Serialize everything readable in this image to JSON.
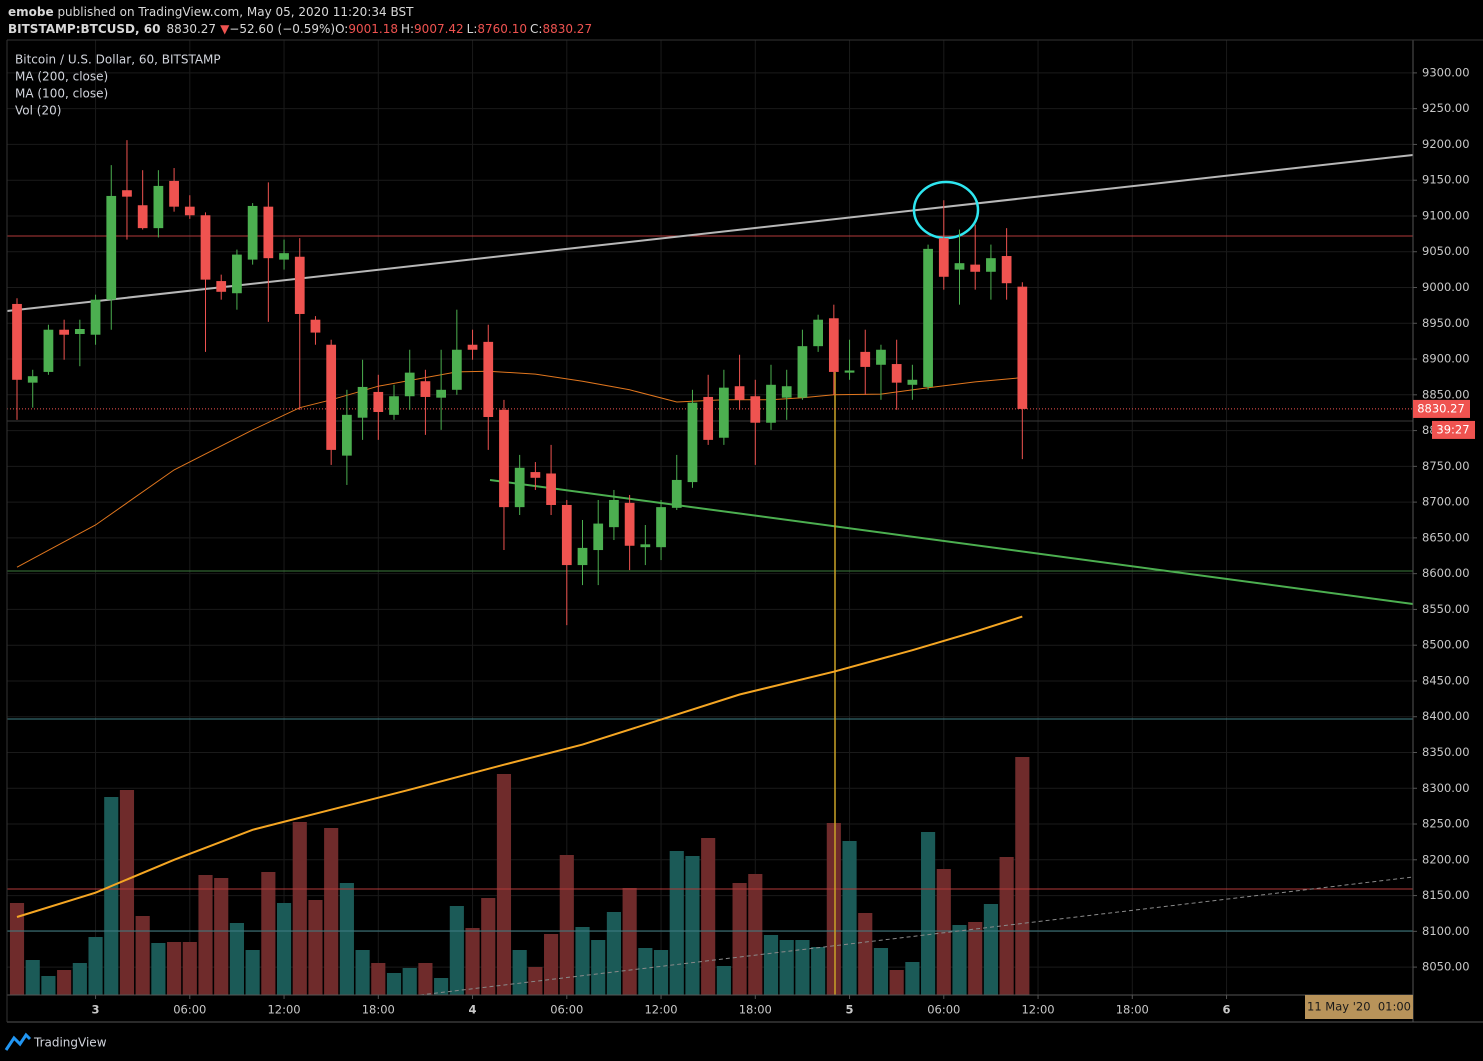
{
  "header": {
    "author": "emobe",
    "published": " published on TradingView.com, May 05, 2020 11:20:34 BST",
    "symbol": "BITSTAMP:BTCUSD, 60",
    "last": "8830.27",
    "arrow": "▼",
    "change": "−52.60 (−0.59%)",
    "open_label": "O:",
    "open": "9001.18",
    "high_label": "H:",
    "high": "9007.42",
    "low_label": "L:",
    "low": "8760.10",
    "close_label": "C:",
    "close": "8830.27"
  },
  "footer": {
    "brand": "TradingView"
  },
  "chart_data": {
    "type": "candlestick",
    "title": "Bitcoin / U.S. Dollar, 60, BITSTAMP",
    "up_color": "#4caf50",
    "down_color": "#ef5350",
    "grid": true,
    "candles": {
      "open": [
        8977,
        8867,
        8882,
        8941,
        8935,
        8934,
        8983,
        9136,
        9115,
        9083,
        9149,
        9113,
        9101,
        9009,
        8992,
        9039,
        9113,
        9039,
        9043,
        8955,
        8920,
        8765,
        8818,
        8854,
        8822,
        8848,
        8869,
        8846,
        8857,
        8920,
        8924,
        8829,
        8693,
        8742,
        8740,
        8696,
        8612,
        8633,
        8665,
        8699,
        8637,
        8637,
        8692,
        8728,
        8847,
        8790,
        8862,
        8848,
        8811,
        8846,
        8846,
        8918,
        8957,
        8881,
        8910,
        8892,
        8893,
        8864,
        8861,
        9069,
        9025,
        9032,
        9022,
        9044,
        9001.18
      ],
      "high": [
        8985,
        8885,
        8948,
        8955,
        8955,
        8990,
        9171,
        9206,
        9164,
        9164,
        9167,
        9129,
        9105,
        9018,
        9053,
        9118,
        9147,
        9067,
        9069,
        8960,
        8927,
        8857,
        8899,
        8878,
        8864,
        8913,
        8885,
        8913,
        8969,
        8941,
        8948,
        8843,
        8766,
        8756,
        8780,
        8703,
        8675,
        8703,
        8717,
        8710,
        8668,
        8703,
        8766,
        8857,
        8878,
        8885,
        8906,
        8871,
        8892,
        8885,
        8941,
        8962,
        8976,
        8927,
        8941,
        8920,
        8927,
        8892,
        9060,
        9122,
        9081,
        9088,
        9060,
        9083,
        9007.42
      ],
      "low": [
        8815,
        8832,
        8878,
        8899,
        8890,
        8920,
        8941,
        9067,
        9081,
        9070,
        9106,
        9096,
        8910,
        8983,
        8969,
        9032,
        8952,
        9025,
        8829,
        8920,
        8752,
        8724,
        8787,
        8787,
        8815,
        8829,
        8794,
        8801,
        8850,
        8899,
        8773,
        8633,
        8682,
        8717,
        8682,
        8528,
        8584,
        8584,
        8647,
        8605,
        8612,
        8619,
        8689,
        8720,
        8780,
        8780,
        8829,
        8752,
        8801,
        8815,
        8843,
        8910,
        8850,
        8871,
        8850,
        8843,
        8829,
        8843,
        8857,
        8997,
        8976,
        8997,
        8983,
        8983,
        8760.1
      ],
      "close": [
        8871,
        8876,
        8941,
        8934,
        8942,
        8983,
        9128,
        9127,
        9083,
        9142,
        9113,
        9101,
        9011,
        8994,
        9046,
        9114,
        9041,
        9048,
        8963,
        8937,
        8773,
        8822,
        8861,
        8826,
        8848,
        8881,
        8847,
        8857,
        8913,
        8913,
        8819,
        8693,
        8748,
        8734,
        8696,
        8612,
        8636,
        8670,
        8703,
        8639,
        8641,
        8693,
        8731,
        8839,
        8787,
        8860,
        8843,
        8811,
        8864,
        8862,
        8918,
        8955,
        8882,
        8884,
        8889,
        8913,
        8867,
        8871,
        9054,
        9015,
        9034,
        9022,
        9041,
        9006,
        8830.27
      ]
    },
    "series": [
      {
        "name": "MA (200, close)",
        "color": "#f5a623",
        "x": [
          0,
          5,
          10,
          15,
          20,
          25,
          31,
          36,
          41,
          46,
          52,
          57,
          61,
          64
        ],
        "values": [
          8120,
          8154,
          8200,
          8242,
          8270,
          8298,
          8333,
          8361,
          8396,
          8431,
          8463,
          8493,
          8519,
          8540
        ]
      },
      {
        "name": "MA (100, close)",
        "color": "#e0761e",
        "x": [
          0,
          5,
          10,
          15,
          18,
          20,
          23,
          28,
          30,
          33,
          36,
          39,
          42,
          45,
          48,
          50,
          52,
          55,
          58,
          61,
          64
        ],
        "values": [
          8609,
          8668,
          8745,
          8801,
          8832,
          8843,
          8862,
          8882,
          8883,
          8879,
          8869,
          8857,
          8840,
          8843,
          8843,
          8846,
          8850,
          8851,
          8860,
          8868,
          8874
        ]
      },
      {
        "name": "Vol (20)",
        "up_color": "#1b5a57",
        "down_color": "#6f2b2b",
        "values": [
          92,
          35,
          19,
          25,
          32,
          58,
          198,
          205,
          79,
          52,
          53,
          53,
          120,
          117,
          72,
          45,
          123,
          92,
          173,
          95,
          167,
          112,
          45,
          32,
          22,
          27,
          32,
          17,
          89,
          67,
          97,
          221,
          45,
          28,
          61,
          140,
          68,
          55,
          83,
          107,
          47,
          45,
          144,
          139,
          157,
          29,
          112,
          121,
          60,
          55,
          55,
          48,
          172,
          154,
          82,
          47,
          25,
          33,
          163,
          126,
          70,
          73,
          91,
          138,
          238
        ]
      }
    ],
    "volume_ylim": [
      0,
      950
    ],
    "xlim": [
      -0.637,
      88.87
    ],
    "xticks": [
      {
        "value": 5,
        "label": "3"
      },
      {
        "value": 11,
        "label": "06:00"
      },
      {
        "value": 17,
        "label": "12:00"
      },
      {
        "value": 23,
        "label": "18:00"
      },
      {
        "value": 29,
        "label": "4"
      },
      {
        "value": 35,
        "label": "06:00"
      },
      {
        "value": 41,
        "label": "12:00"
      },
      {
        "value": 47,
        "label": "18:00"
      },
      {
        "value": 53,
        "label": "5"
      },
      {
        "value": 59,
        "label": "06:00"
      },
      {
        "value": 65,
        "label": "12:00"
      },
      {
        "value": 71,
        "label": "18:00"
      },
      {
        "value": 77,
        "label": "6"
      }
    ],
    "ylim": [
      8011,
      9339
    ],
    "yticks": [
      {
        "value": 8050,
        "label": "8050.00"
      },
      {
        "value": 8100,
        "label": "8100.00"
      },
      {
        "value": 8150,
        "label": "8150.00"
      },
      {
        "value": 8200,
        "label": "8200.00"
      },
      {
        "value": 8250,
        "label": "8250.00"
      },
      {
        "value": 8300,
        "label": "8300.00"
      },
      {
        "value": 8350,
        "label": "8350.00"
      },
      {
        "value": 8400,
        "label": "8400.00"
      },
      {
        "value": 8450,
        "label": "8450.00"
      },
      {
        "value": 8500,
        "label": "8500.00"
      },
      {
        "value": 8550,
        "label": "8550.00"
      },
      {
        "value": 8600,
        "label": "8600.00"
      },
      {
        "value": 8650,
        "label": "8650.00"
      },
      {
        "value": 8700,
        "label": "8700.00"
      },
      {
        "value": 8750,
        "label": "8750.00"
      },
      {
        "value": 8800,
        "label": "8800.00"
      },
      {
        "value": 8850,
        "label": "8850.00"
      },
      {
        "value": 8900,
        "label": "8900.00"
      },
      {
        "value": 8950,
        "label": "8950.00"
      },
      {
        "value": 9000,
        "label": "9000.00"
      },
      {
        "value": 9050,
        "label": "9050.00"
      },
      {
        "value": 9100,
        "label": "9100.00"
      },
      {
        "value": 9150,
        "label": "9150.00"
      },
      {
        "value": 9200,
        "label": "9200.00"
      },
      {
        "value": 9250,
        "label": "9250.00"
      },
      {
        "value": 9300,
        "label": "9300.00"
      }
    ],
    "last_price_label": {
      "value": 8830.27,
      "label": "8830.27"
    },
    "countdown": "39:27",
    "crosshair_label": "11 May '20  01:00"
  }
}
